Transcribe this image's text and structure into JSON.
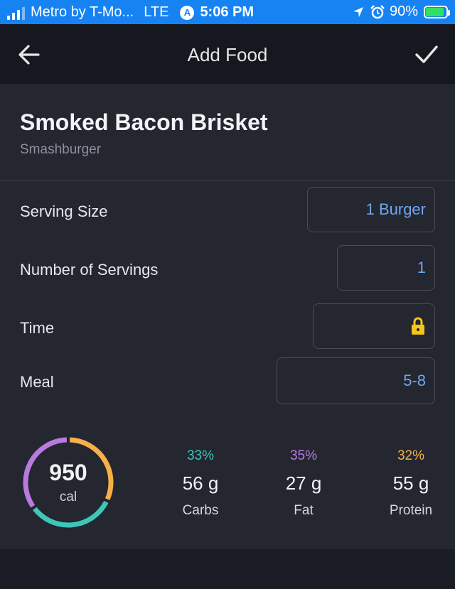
{
  "status_bar": {
    "carrier": "Metro by T-Mo...",
    "network": "LTE",
    "time": "5:06 PM",
    "battery_percent": "90%",
    "battery_level": 0.9
  },
  "app_bar": {
    "title": "Add Food",
    "back_icon": "arrow-left-icon",
    "confirm_icon": "checkmark-icon"
  },
  "food": {
    "name": "Smoked Bacon Brisket",
    "brand": "Smashburger"
  },
  "form": {
    "serving_size_label": "Serving Size",
    "serving_size_value": "1 Burger",
    "servings_label": "Number of Servings",
    "servings_value": "1",
    "time_label": "Time",
    "time_icon": "lock-icon",
    "meal_label": "Meal",
    "meal_value": "5-8"
  },
  "nutrition": {
    "calories": "950",
    "calories_unit": "cal",
    "macros": [
      {
        "percent": "33%",
        "grams": "56 g",
        "name": "Carbs",
        "color": "#3ec7b8",
        "fraction": 0.33
      },
      {
        "percent": "35%",
        "grams": "27 g",
        "name": "Fat",
        "color": "#b97ae0",
        "fraction": 0.35
      },
      {
        "percent": "32%",
        "grams": "55 g",
        "name": "Protein",
        "color": "#f5b04a",
        "fraction": 0.32
      }
    ]
  },
  "colors": {
    "status_bar": "#1783f2",
    "accent_value": "#6ea7f0",
    "lock": "#f5c518"
  }
}
